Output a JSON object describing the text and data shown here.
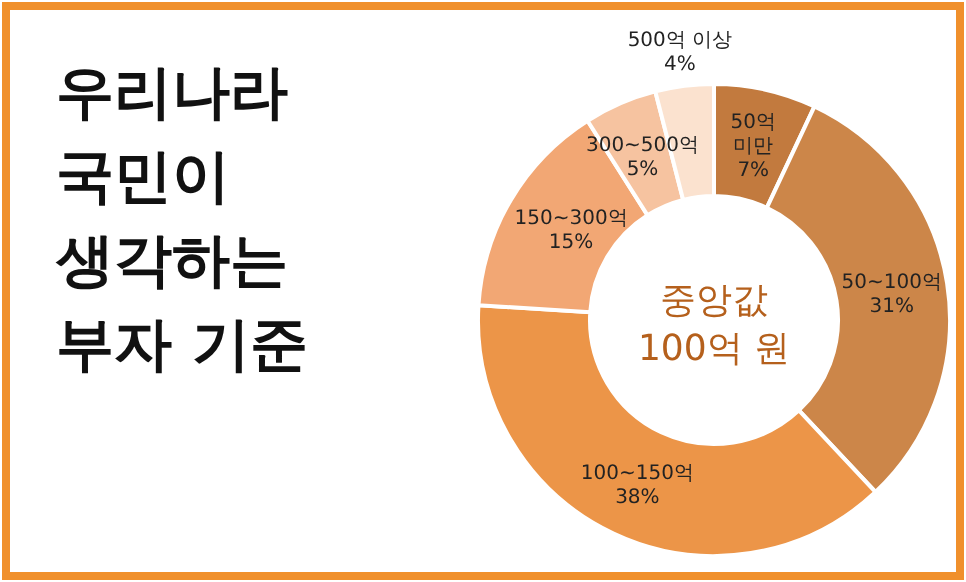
{
  "chart_data": {
    "type": "donut",
    "title": "우리나라 국민이 생각하는 부자 기준",
    "categories": [
      "50억 미만",
      "50~100억",
      "100~150억",
      "150~300억",
      "300~500억",
      "500억 이상"
    ],
    "values": [
      7,
      31,
      38,
      15,
      5,
      4
    ],
    "colors": [
      "#c27a3e",
      "#cc8649",
      "#ec9548",
      "#f2a774",
      "#f6c3a0",
      "#fbe2cf"
    ],
    "value_labels": [
      "7%",
      "31%",
      "38%",
      "15%",
      "5%",
      "4%"
    ],
    "annotations": [
      "중앙값 100억 원"
    ]
  }
}
